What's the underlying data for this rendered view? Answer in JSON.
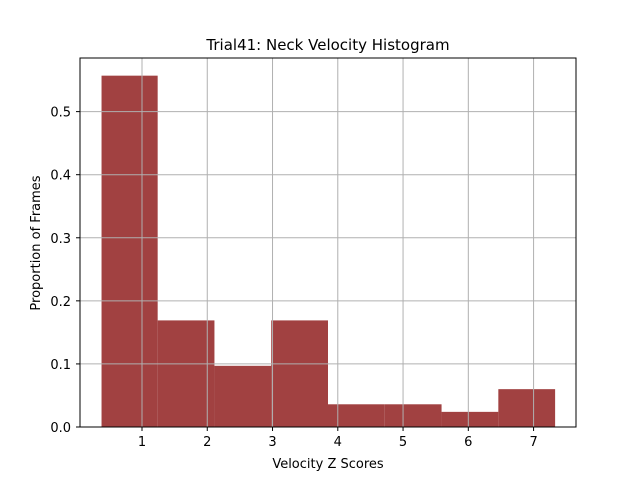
{
  "chart_data": {
    "type": "bar",
    "title": "Trial41: Neck Velocity Histogram",
    "xlabel": "Velocity Z Scores",
    "ylabel": "Proportion of Frames",
    "xlim": [
      0.05,
      7.65
    ],
    "ylim": [
      0,
      0.585
    ],
    "xticks": [
      1,
      2,
      3,
      4,
      5,
      6,
      7
    ],
    "yticks": [
      0.0,
      0.1,
      0.2,
      0.3,
      0.4,
      0.5
    ],
    "ytick_labels": [
      "0.0",
      "0.1",
      "0.2",
      "0.3",
      "0.4",
      "0.5"
    ],
    "grid": true,
    "bar_color": "#a14141",
    "grid_color": "#b0b0b0",
    "bins": [
      {
        "x0": 0.38,
        "x1": 1.24,
        "value": 0.557
      },
      {
        "x0": 1.24,
        "x1": 2.11,
        "value": 0.169
      },
      {
        "x0": 2.11,
        "x1": 2.98,
        "value": 0.097
      },
      {
        "x0": 2.98,
        "x1": 3.85,
        "value": 0.169
      },
      {
        "x0": 3.85,
        "x1": 4.72,
        "value": 0.036
      },
      {
        "x0": 4.72,
        "x1": 5.59,
        "value": 0.036
      },
      {
        "x0": 5.59,
        "x1": 6.46,
        "value": 0.024
      },
      {
        "x0": 6.46,
        "x1": 7.33,
        "value": 0.06
      }
    ]
  }
}
